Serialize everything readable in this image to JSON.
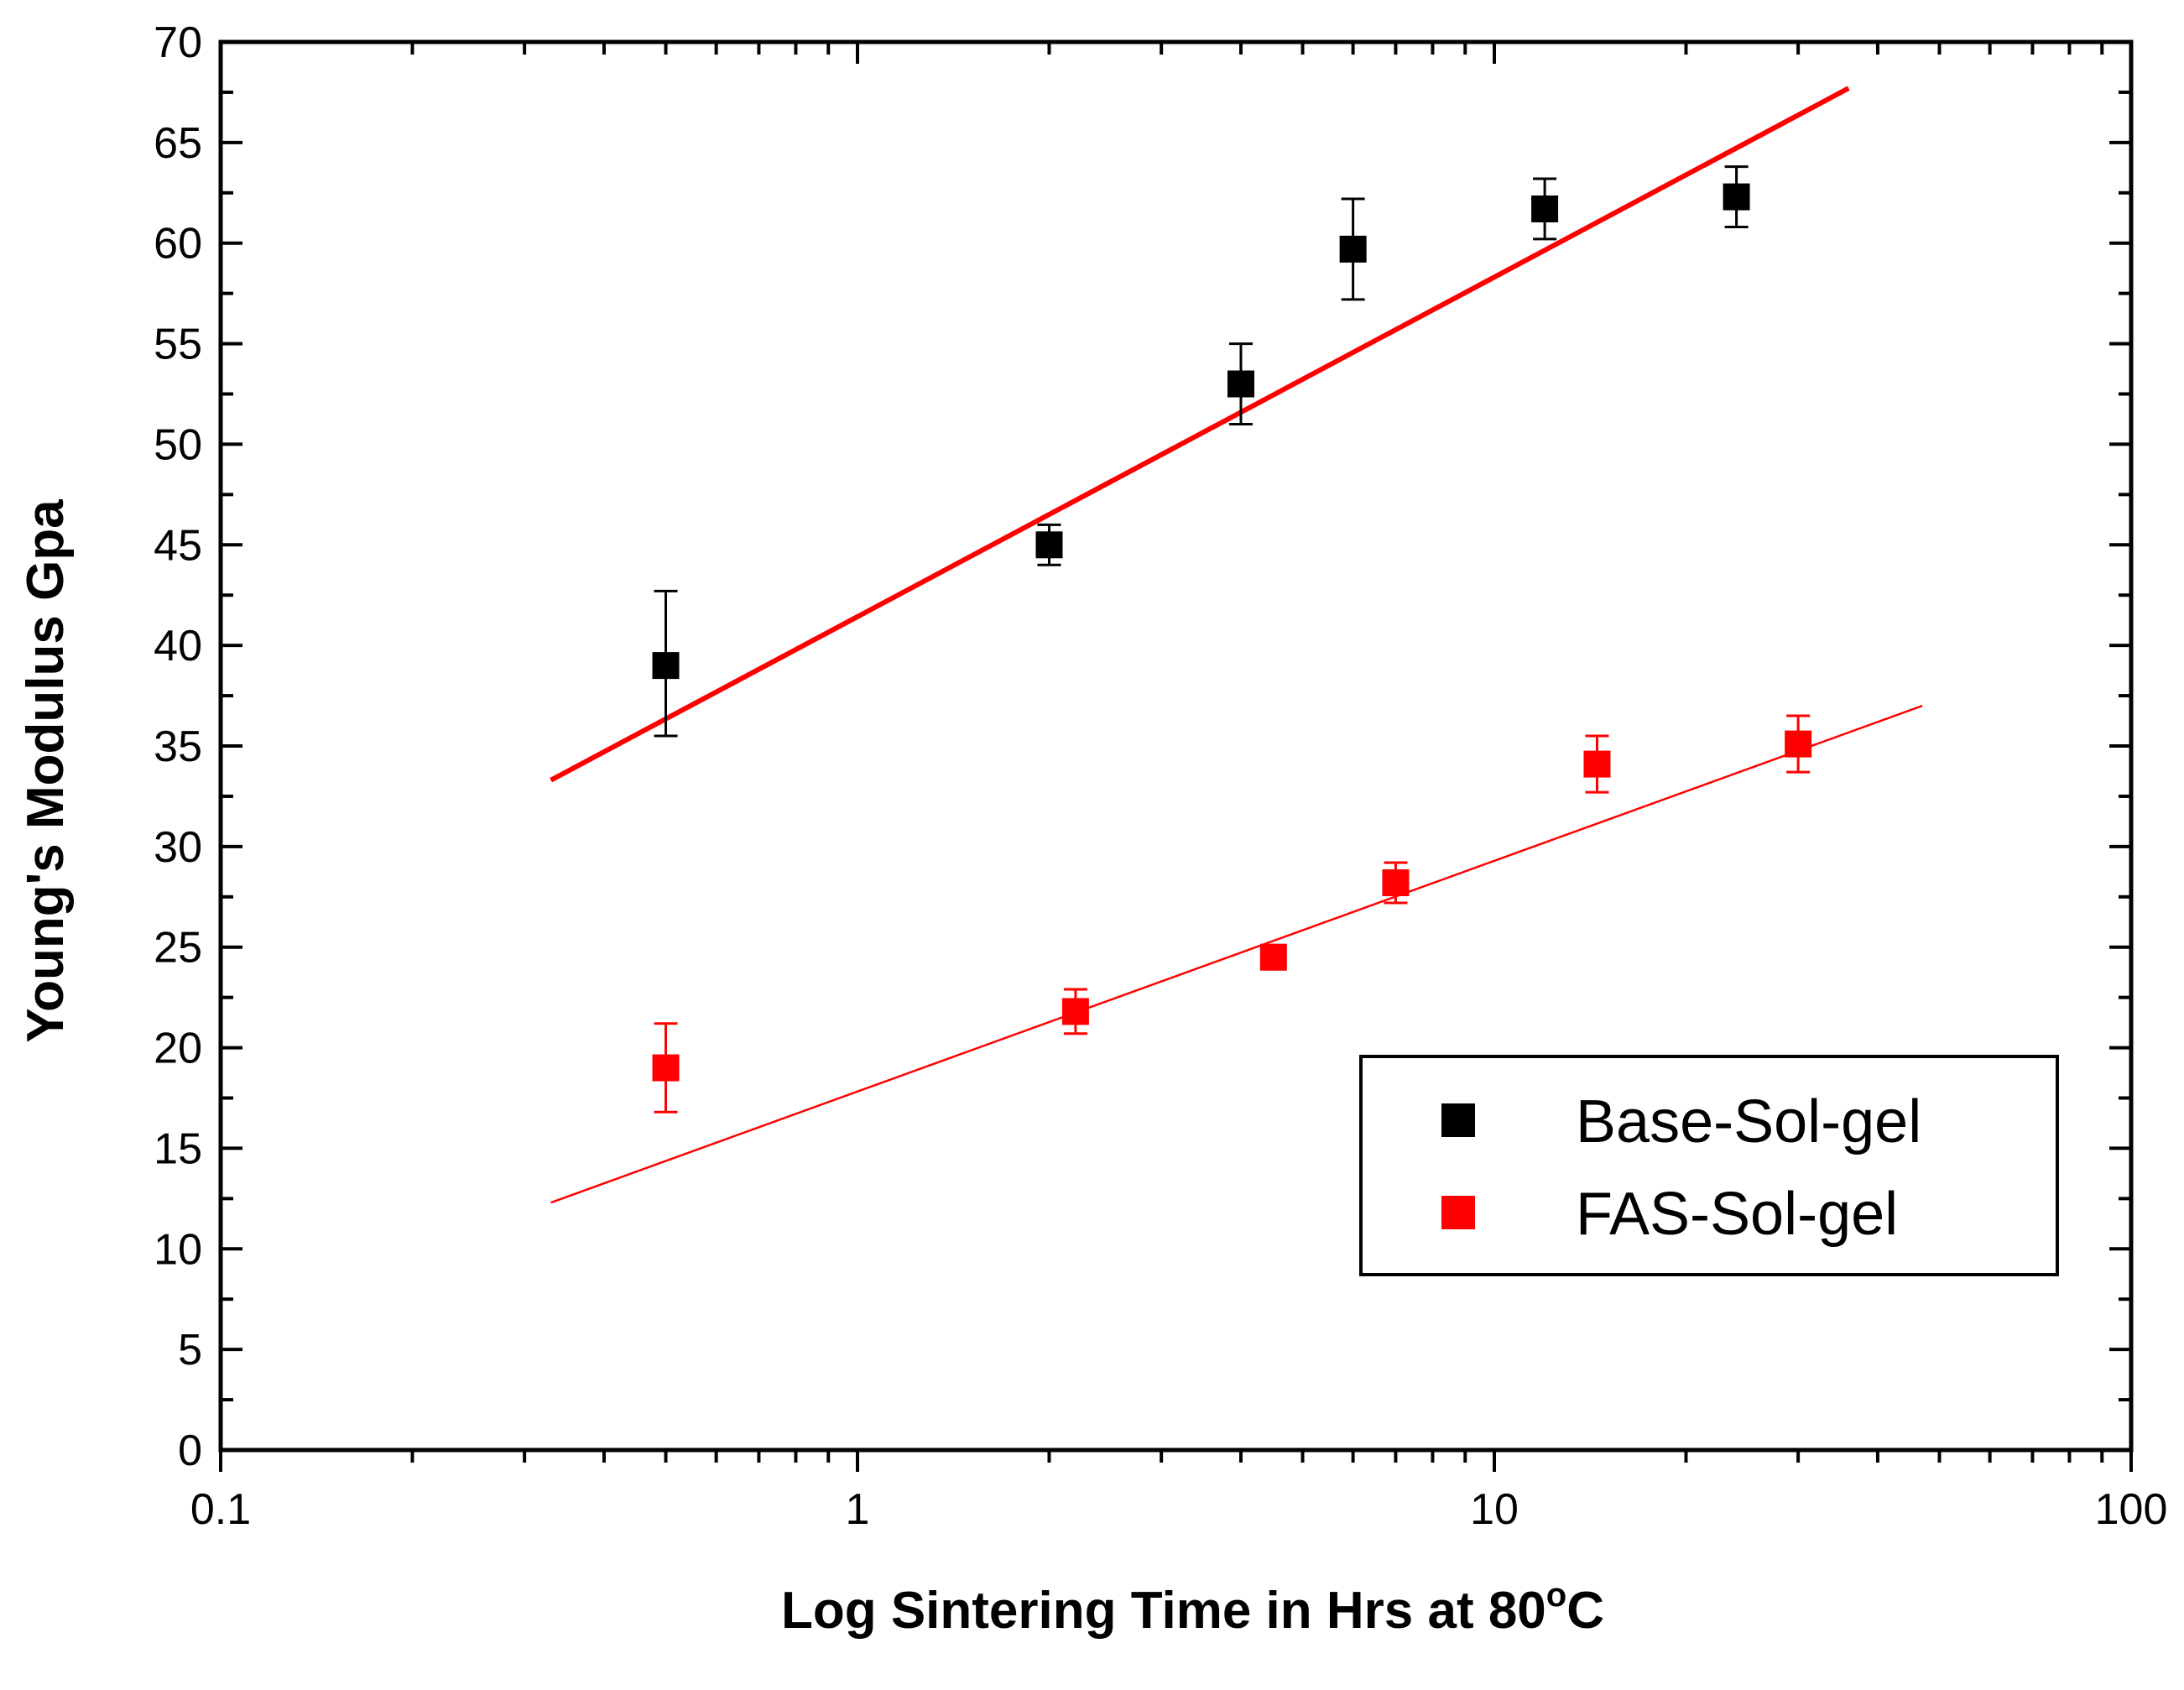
{
  "chart_data": {
    "type": "scatter",
    "title": "",
    "xlabel": "Log Sintering Time in Hrs at 80",
    "xlabel_superscript": "o",
    "xlabel_suffix": "C",
    "ylabel": "Young's Modulus Gpa",
    "x_scale": "log",
    "xlim": [
      0.1,
      100
    ],
    "ylim": [
      0,
      70
    ],
    "x_ticks": [
      {
        "value": 0.1,
        "label": "0.1"
      },
      {
        "value": 1,
        "label": "1"
      },
      {
        "value": 10,
        "label": "10"
      },
      {
        "value": 100,
        "label": "100"
      }
    ],
    "y_ticks": [
      {
        "value": 0,
        "label": "0"
      },
      {
        "value": 5,
        "label": "5"
      },
      {
        "value": 10,
        "label": "10"
      },
      {
        "value": 15,
        "label": "15"
      },
      {
        "value": 20,
        "label": "20"
      },
      {
        "value": 25,
        "label": "25"
      },
      {
        "value": 30,
        "label": "30"
      },
      {
        "value": 35,
        "label": "35"
      },
      {
        "value": 40,
        "label": "40"
      },
      {
        "value": 45,
        "label": "45"
      },
      {
        "value": 50,
        "label": "50"
      },
      {
        "value": 55,
        "label": "55"
      },
      {
        "value": 60,
        "label": "60"
      },
      {
        "value": 65,
        "label": "65"
      },
      {
        "value": 70,
        "label": "70"
      }
    ],
    "y_minor_step": 2.5,
    "grid": false,
    "legend_position": "bottom-right",
    "series": [
      {
        "name": "Base-Sol-gel",
        "color": "#000000",
        "points": [
          {
            "x": 0.5,
            "y": 39.0,
            "err_low": 3.5,
            "err_high": 3.7
          },
          {
            "x": 2.0,
            "y": 45.0,
            "err_low": 1.0,
            "err_high": 1.0
          },
          {
            "x": 4.0,
            "y": 53.0,
            "err_low": 2.0,
            "err_high": 2.0
          },
          {
            "x": 6.0,
            "y": 59.7,
            "err_low": 2.5,
            "err_high": 2.5
          },
          {
            "x": 12.0,
            "y": 61.7,
            "err_low": 1.5,
            "err_high": 1.5
          },
          {
            "x": 24.0,
            "y": 62.3,
            "err_low": 1.5,
            "err_high": 1.5
          }
        ],
        "fit": {
          "color": "#ff0000",
          "x": [
            0.33,
            36.0
          ],
          "y": [
            33.3,
            67.7
          ],
          "width": "thick"
        }
      },
      {
        "name": "FAS-Sol-gel",
        "color": "#ff0000",
        "points": [
          {
            "x": 0.5,
            "y": 19.0,
            "err_low": 2.2,
            "err_high": 2.2
          },
          {
            "x": 2.2,
            "y": 21.8,
            "err_low": 1.1,
            "err_high": 1.1
          },
          {
            "x": 4.5,
            "y": 24.5,
            "err_low": 0.6,
            "err_high": 0.6
          },
          {
            "x": 7.0,
            "y": 28.2,
            "err_low": 1.0,
            "err_high": 1.0
          },
          {
            "x": 14.5,
            "y": 34.1,
            "err_low": 1.4,
            "err_high": 1.4
          },
          {
            "x": 30.0,
            "y": 35.1,
            "err_low": 1.4,
            "err_high": 1.4
          }
        ],
        "fit": {
          "color": "#ff0000",
          "x": [
            0.33,
            47.0
          ],
          "y": [
            12.3,
            37.0
          ],
          "width": "thin"
        }
      }
    ]
  }
}
